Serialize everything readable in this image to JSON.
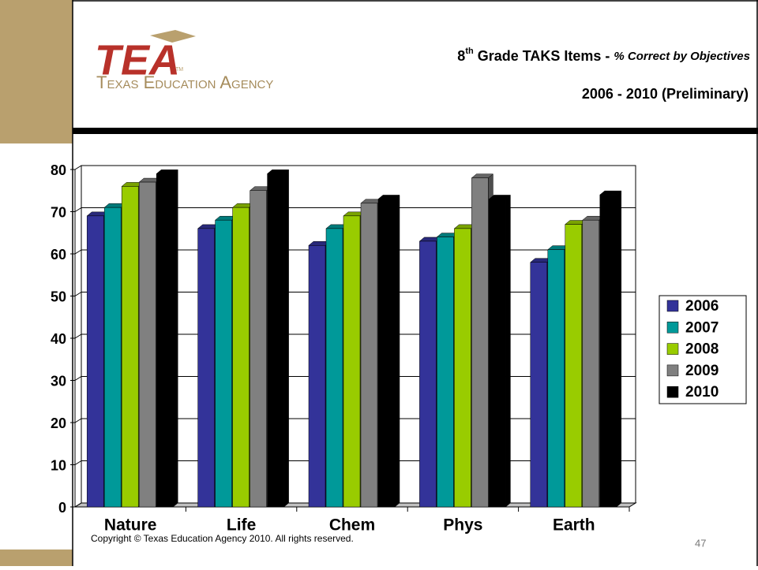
{
  "header": {
    "logo": "TEA",
    "logo_mark": "TM",
    "agency": "Texas Education Agency",
    "title_number": "8",
    "title_sup": "th",
    "title_main": " Grade TAKS Items - ",
    "title_italic": "% Correct by Objectives",
    "subtitle": "2006 - 2010 (Preliminary)"
  },
  "chart_data": {
    "type": "bar",
    "categories": [
      "Nature",
      "Life",
      "Chem",
      "Phys",
      "Earth"
    ],
    "series": [
      {
        "name": "2006",
        "color": "#333399",
        "values": [
          69,
          66,
          62,
          63,
          58
        ]
      },
      {
        "name": "2007",
        "color": "#009999",
        "values": [
          71,
          68,
          66,
          64,
          61
        ]
      },
      {
        "name": "2008",
        "color": "#99cc00",
        "values": [
          76,
          71,
          69,
          66,
          67
        ]
      },
      {
        "name": "2009",
        "color": "#808080",
        "values": [
          77,
          75,
          72,
          78,
          68
        ]
      },
      {
        "name": "2010",
        "color": "#000000",
        "values": [
          79,
          79,
          73,
          73,
          74
        ]
      }
    ],
    "ylim": [
      0,
      80
    ],
    "yticks": [
      0,
      10,
      20,
      30,
      40,
      50,
      60,
      70,
      80
    ],
    "grid": true,
    "legend": "right"
  },
  "footer": {
    "copyright": "Copyright © Texas Education Agency 2010. All rights reserved.",
    "page": "47"
  }
}
